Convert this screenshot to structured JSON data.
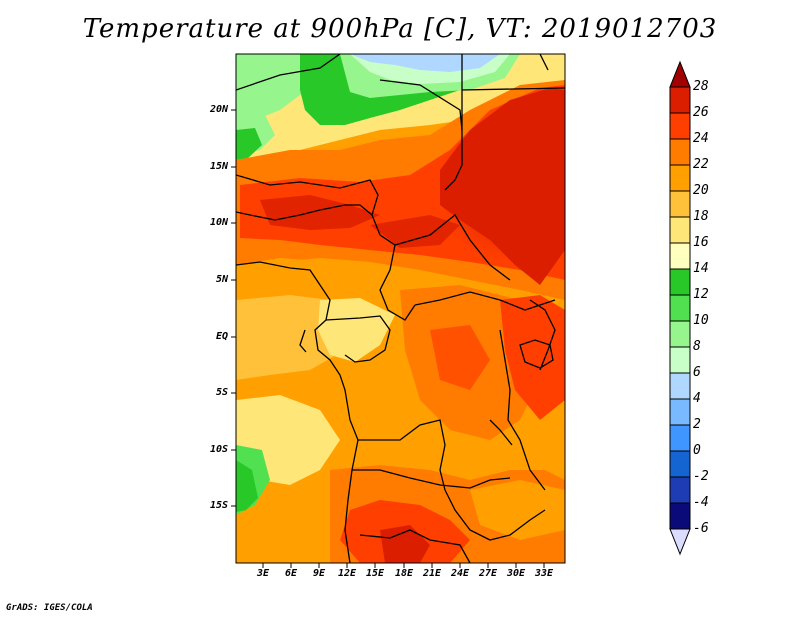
{
  "title": "Temperature at 900hPa [C], VT: 2019012703",
  "credit": "GrADS: IGES/COLA",
  "lat_labels": [
    "20N",
    "15N",
    "10N",
    "5N",
    "EQ",
    "5S",
    "10S",
    "15S"
  ],
  "lon_labels": [
    "3E",
    "6E",
    "9E",
    "12E",
    "15E",
    "18E",
    "21E",
    "24E",
    "27E",
    "30E",
    "33E"
  ],
  "colorbar": {
    "labels": [
      "28",
      "26",
      "24",
      "22",
      "20",
      "18",
      "16",
      "14",
      "12",
      "10",
      "8",
      "6",
      "4",
      "2",
      "0",
      "-2",
      "-4",
      "-6"
    ],
    "colors": [
      "#a00000",
      "#dc1e00",
      "#ff3f00",
      "#ff7c00",
      "#ffa000",
      "#ffc03a",
      "#ffe678",
      "#ffffbe",
      "#28c828",
      "#50e050",
      "#96f58c",
      "#c8ffc8",
      "#afd7ff",
      "#78b9ff",
      "#4096ff",
      "#1464d2",
      "#1e3cb4",
      "#0a0a78",
      "#dcdcff"
    ]
  }
}
